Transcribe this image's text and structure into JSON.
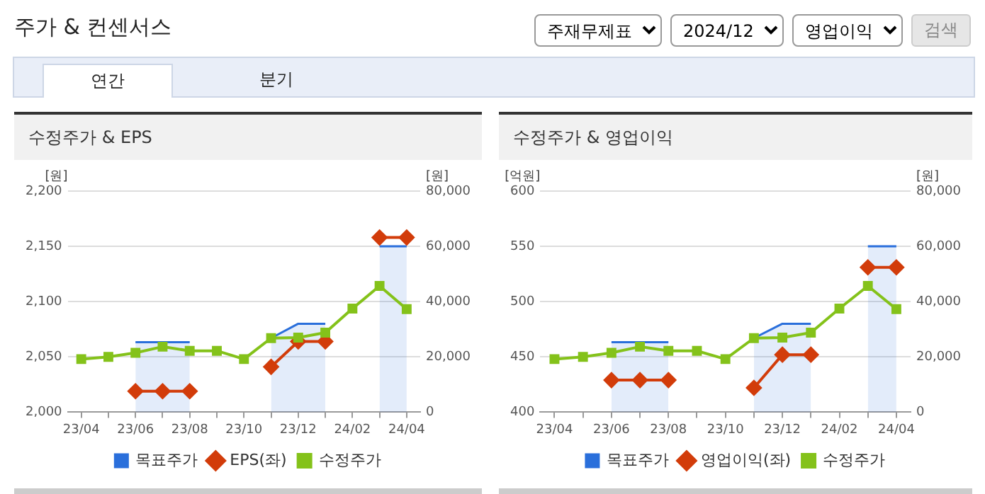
{
  "chart_data": [
    {
      "type": "other",
      "title": "주가 & 컨센서스",
      "annotations": [
        "주재무제표",
        "2024/12",
        "영업이익",
        "검색",
        "연간",
        "분기"
      ]
    },
    {
      "type": "line",
      "title": "수정주가 & EPS",
      "ylabel": "[원]",
      "y2label": "[원]",
      "categories": [
        "23/04",
        null,
        "23/06",
        null,
        "23/08",
        null,
        "23/10",
        null,
        "23/12",
        null,
        "24/02",
        null,
        "24/04"
      ],
      "series": [
        {
          "name": "목표주가",
          "type": "area",
          "axis": "y2",
          "color": "#2a6fdb",
          "marker": "none",
          "values": [
            null,
            null,
            25300,
            25300,
            25300,
            null,
            null,
            26800,
            32000,
            32000,
            null,
            60000,
            60000
          ]
        },
        {
          "name": "EPS(좌)",
          "type": "line",
          "axis": "y",
          "color": "#d23c0a",
          "marker": "diamond",
          "values": [
            null,
            null,
            2019,
            2019,
            2019,
            null,
            null,
            2041,
            2064,
            2064,
            null,
            2158,
            2158
          ]
        },
        {
          "name": "수정주가",
          "type": "line",
          "axis": "y2",
          "color": "#84c21a",
          "marker": "square",
          "values": [
            19200,
            20000,
            21500,
            23700,
            22200,
            22200,
            19200,
            26800,
            27000,
            28800,
            37500,
            45700,
            37300
          ]
        }
      ],
      "ylim": [
        2000,
        2200
      ],
      "yticks": [
        {
          "value": 2000,
          "label": "2,000"
        },
        {
          "value": 2050,
          "label": "2,050"
        },
        {
          "value": 2100,
          "label": "2,100"
        },
        {
          "value": 2150,
          "label": "2,150"
        },
        {
          "value": 2200,
          "label": "2,200"
        }
      ],
      "y2lim": [
        0,
        80000
      ],
      "y2ticks": [
        0,
        {
          "value": 20000,
          "label": "20,000"
        },
        {
          "value": 40000,
          "label": "40,000"
        },
        {
          "value": 60000,
          "label": "60,000"
        },
        {
          "value": 80000,
          "label": "80,000"
        }
      ],
      "grid": "y",
      "legend": "bottom"
    },
    {
      "type": "line",
      "title": "수정주가 & 영업이익",
      "ylabel": "[억원]",
      "y2label": "[원]",
      "categories": [
        "23/04",
        null,
        "23/06",
        null,
        "23/08",
        null,
        "23/10",
        null,
        "23/12",
        null,
        "24/02",
        null,
        "24/04"
      ],
      "series": [
        {
          "name": "목표주가",
          "type": "area",
          "axis": "y2",
          "color": "#2a6fdb",
          "marker": "none",
          "values": [
            null,
            null,
            25300,
            25300,
            25300,
            null,
            null,
            26800,
            32000,
            32000,
            null,
            60000,
            60000
          ]
        },
        {
          "name": "영업이익(좌)",
          "type": "line",
          "axis": "y",
          "color": "#d23c0a",
          "marker": "diamond",
          "values": [
            null,
            null,
            429,
            429,
            429,
            null,
            null,
            422,
            452,
            452,
            null,
            531,
            531
          ]
        },
        {
          "name": "수정주가",
          "type": "line",
          "axis": "y2",
          "color": "#84c21a",
          "marker": "square",
          "values": [
            19200,
            20000,
            21500,
            23700,
            22200,
            22200,
            19200,
            26800,
            27000,
            28800,
            37500,
            45700,
            37300
          ]
        }
      ],
      "ylim": [
        400,
        600
      ],
      "yticks": [
        400,
        450,
        500,
        550,
        600
      ],
      "y2lim": [
        0,
        80000
      ],
      "y2ticks": [
        0,
        {
          "value": 20000,
          "label": "20,000"
        },
        {
          "value": 40000,
          "label": "40,000"
        },
        {
          "value": 60000,
          "label": "60,000"
        },
        {
          "value": 80000,
          "label": "80,000"
        }
      ],
      "grid": "y",
      "legend": "bottom"
    }
  ]
}
